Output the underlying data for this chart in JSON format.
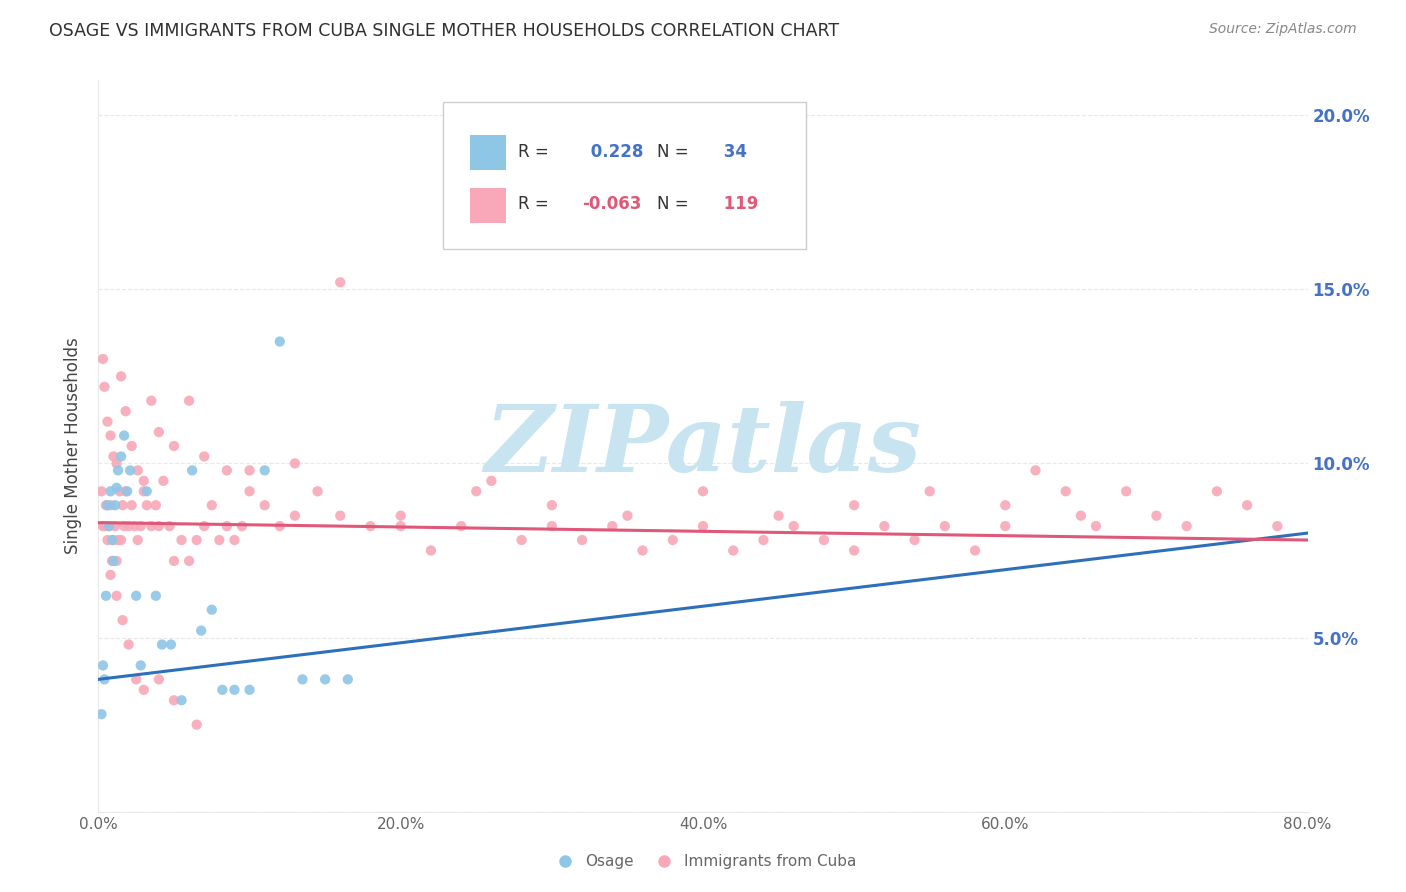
{
  "title": "OSAGE VS IMMIGRANTS FROM CUBA SINGLE MOTHER HOUSEHOLDS CORRELATION CHART",
  "source": "Source: ZipAtlas.com",
  "ylabel": "Single Mother Households",
  "xlim": [
    0.0,
    0.8
  ],
  "ylim": [
    0.0,
    0.21
  ],
  "xticks": [
    0.0,
    0.1,
    0.2,
    0.3,
    0.4,
    0.5,
    0.6,
    0.7,
    0.8
  ],
  "xtick_labels": [
    "0.0%",
    "",
    "20.0%",
    "",
    "40.0%",
    "",
    "60.0%",
    "",
    "80.0%"
  ],
  "yticks_right": [
    0.05,
    0.1,
    0.15,
    0.2
  ],
  "ytick_labels_right": [
    "5.0%",
    "10.0%",
    "15.0%",
    "20.0%"
  ],
  "series1_name": "Osage",
  "series1_color": "#8ec6e6",
  "series1_line_color": "#2e6fba",
  "series1_R": 0.228,
  "series1_N": 34,
  "series2_name": "Immigrants from Cuba",
  "series2_color": "#f8a8b8",
  "series2_line_color": "#e05878",
  "series2_R": -0.063,
  "series2_N": 119,
  "watermark": "ZIPatlas",
  "watermark_color": "#c8e4f0",
  "background_color": "#ffffff",
  "grid_color": "#e8e8e8",
  "title_color": "#303030",
  "source_color": "#888888",
  "axis_label_color": "#444444",
  "tick_label_color": "#666666",
  "right_tick_color": "#4472c4",
  "legend_border_color": "#cccccc",
  "osage_line_start_y": 0.038,
  "osage_line_end_y": 0.08,
  "osage_line_start_x": 0.0,
  "osage_line_end_x": 0.8,
  "cuba_line_start_y": 0.083,
  "cuba_line_end_y": 0.078,
  "cuba_line_start_x": 0.0,
  "cuba_line_end_x": 0.8,
  "osage_x": [
    0.002,
    0.003,
    0.004,
    0.005,
    0.006,
    0.007,
    0.008,
    0.009,
    0.01,
    0.011,
    0.012,
    0.013,
    0.015,
    0.017,
    0.019,
    0.021,
    0.025,
    0.028,
    0.032,
    0.038,
    0.042,
    0.048,
    0.055,
    0.062,
    0.068,
    0.075,
    0.082,
    0.09,
    0.1,
    0.11,
    0.12,
    0.135,
    0.15,
    0.165
  ],
  "osage_y": [
    0.028,
    0.042,
    0.038,
    0.062,
    0.088,
    0.082,
    0.092,
    0.078,
    0.072,
    0.088,
    0.093,
    0.098,
    0.102,
    0.108,
    0.092,
    0.098,
    0.062,
    0.042,
    0.092,
    0.062,
    0.048,
    0.048,
    0.032,
    0.098,
    0.052,
    0.058,
    0.035,
    0.035,
    0.035,
    0.098,
    0.135,
    0.038,
    0.038,
    0.038
  ],
  "cuba_x": [
    0.002,
    0.003,
    0.004,
    0.005,
    0.006,
    0.006,
    0.007,
    0.008,
    0.009,
    0.01,
    0.011,
    0.012,
    0.013,
    0.014,
    0.015,
    0.016,
    0.017,
    0.018,
    0.02,
    0.022,
    0.024,
    0.026,
    0.028,
    0.03,
    0.032,
    0.035,
    0.038,
    0.04,
    0.043,
    0.047,
    0.05,
    0.055,
    0.06,
    0.065,
    0.07,
    0.075,
    0.08,
    0.085,
    0.09,
    0.095,
    0.1,
    0.11,
    0.12,
    0.13,
    0.145,
    0.16,
    0.18,
    0.2,
    0.22,
    0.24,
    0.26,
    0.28,
    0.3,
    0.32,
    0.34,
    0.36,
    0.38,
    0.4,
    0.42,
    0.44,
    0.46,
    0.48,
    0.5,
    0.52,
    0.54,
    0.56,
    0.58,
    0.6,
    0.62,
    0.64,
    0.66,
    0.68,
    0.7,
    0.72,
    0.74,
    0.76,
    0.78,
    0.003,
    0.004,
    0.006,
    0.008,
    0.01,
    0.012,
    0.015,
    0.018,
    0.022,
    0.026,
    0.03,
    0.035,
    0.04,
    0.05,
    0.06,
    0.07,
    0.085,
    0.1,
    0.13,
    0.16,
    0.2,
    0.25,
    0.3,
    0.35,
    0.4,
    0.45,
    0.5,
    0.55,
    0.6,
    0.65,
    0.008,
    0.012,
    0.016,
    0.02,
    0.025,
    0.03,
    0.04,
    0.05,
    0.065
  ],
  "cuba_y": [
    0.092,
    0.082,
    0.082,
    0.088,
    0.078,
    0.082,
    0.082,
    0.088,
    0.072,
    0.078,
    0.082,
    0.072,
    0.078,
    0.092,
    0.078,
    0.088,
    0.082,
    0.092,
    0.082,
    0.088,
    0.082,
    0.078,
    0.082,
    0.092,
    0.088,
    0.082,
    0.088,
    0.082,
    0.095,
    0.082,
    0.072,
    0.078,
    0.072,
    0.078,
    0.082,
    0.088,
    0.078,
    0.082,
    0.078,
    0.082,
    0.092,
    0.088,
    0.082,
    0.1,
    0.092,
    0.152,
    0.082,
    0.082,
    0.075,
    0.082,
    0.095,
    0.078,
    0.082,
    0.078,
    0.082,
    0.075,
    0.078,
    0.082,
    0.075,
    0.078,
    0.082,
    0.078,
    0.075,
    0.082,
    0.078,
    0.082,
    0.075,
    0.082,
    0.098,
    0.092,
    0.082,
    0.092,
    0.085,
    0.082,
    0.092,
    0.088,
    0.082,
    0.13,
    0.122,
    0.112,
    0.108,
    0.102,
    0.1,
    0.125,
    0.115,
    0.105,
    0.098,
    0.095,
    0.118,
    0.109,
    0.105,
    0.118,
    0.102,
    0.098,
    0.098,
    0.085,
    0.085,
    0.085,
    0.092,
    0.088,
    0.085,
    0.092,
    0.085,
    0.088,
    0.092,
    0.088,
    0.085,
    0.068,
    0.062,
    0.055,
    0.048,
    0.038,
    0.035,
    0.038,
    0.032,
    0.025
  ]
}
